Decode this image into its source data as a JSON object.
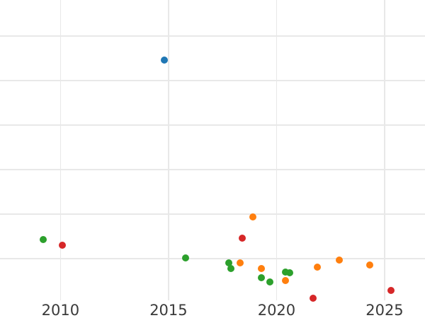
{
  "figure": {
    "background": "#ffffff",
    "grid_color": "#e8e8e8",
    "tick_label_color": "#3a3a3a",
    "title": "",
    "legend_visible": false,
    "y_axis_labels_visible": false
  },
  "chart_data": {
    "type": "scatter",
    "title": "",
    "xlabel": "",
    "ylabel": "",
    "grid": true,
    "legend": "none",
    "x_unit": "year",
    "y_unit": "gridline-units (y axis unlabeled; 0 = lowest visible gridline, +1 per gridline)",
    "xlim": [
      2007.2,
      2026.87
    ],
    "ylim": [
      -0.94,
      5.81
    ],
    "x_tick_values": [
      2010,
      2015,
      2020,
      2025
    ],
    "x_tick_labels": [
      "2010",
      "2015",
      "2020",
      "2025"
    ],
    "y_gridline_values": [
      0,
      1,
      2,
      3,
      4,
      5
    ],
    "series": [
      {
        "name": "blue",
        "color": "#1f77b4",
        "points": [
          {
            "x": 2014.8,
            "y": 4.46
          }
        ]
      },
      {
        "name": "green",
        "color": "#2ca02c",
        "points": [
          {
            "x": 2009.2,
            "y": 0.43
          },
          {
            "x": 2015.8,
            "y": 0.02
          },
          {
            "x": 2017.8,
            "y": -0.1
          },
          {
            "x": 2017.9,
            "y": -0.22
          },
          {
            "x": 2019.3,
            "y": -0.43
          },
          {
            "x": 2019.7,
            "y": -0.52
          },
          {
            "x": 2020.4,
            "y": -0.3
          },
          {
            "x": 2020.6,
            "y": -0.32
          }
        ]
      },
      {
        "name": "orange",
        "color": "#ff7f0e",
        "points": [
          {
            "x": 2018.3,
            "y": -0.1
          },
          {
            "x": 2018.9,
            "y": 0.94
          },
          {
            "x": 2019.3,
            "y": -0.22
          },
          {
            "x": 2020.4,
            "y": -0.49
          },
          {
            "x": 2021.9,
            "y": -0.19
          },
          {
            "x": 2022.9,
            "y": -0.03
          },
          {
            "x": 2024.3,
            "y": -0.14
          }
        ]
      },
      {
        "name": "red",
        "color": "#d62728",
        "points": [
          {
            "x": 2010.1,
            "y": 0.3
          },
          {
            "x": 2018.4,
            "y": 0.46
          },
          {
            "x": 2021.7,
            "y": -0.9
          },
          {
            "x": 2025.3,
            "y": -0.71
          }
        ]
      }
    ]
  }
}
